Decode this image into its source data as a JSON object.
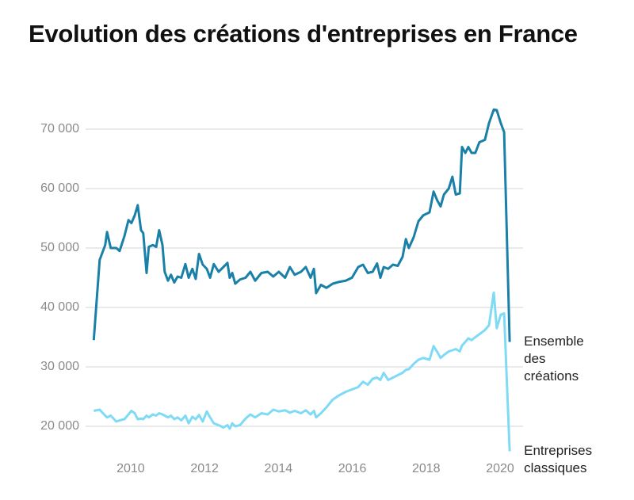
{
  "chart_data": {
    "type": "line",
    "title": "Evolution des créations d'entreprises en France",
    "x": [
      2009.0,
      2009.16,
      2009.31,
      2009.36,
      2009.46,
      2009.61,
      2009.7,
      2009.83,
      2009.94,
      2010.02,
      2010.11,
      2010.19,
      2010.28,
      2010.34,
      2010.43,
      2010.49,
      2010.6,
      2010.69,
      2010.77,
      2010.86,
      2010.92,
      2011.01,
      2011.09,
      2011.18,
      2011.27,
      2011.37,
      2011.48,
      2011.57,
      2011.67,
      2011.76,
      2011.85,
      2011.95,
      2012.06,
      2012.15,
      2012.25,
      2012.38,
      2012.51,
      2012.62,
      2012.68,
      2012.75,
      2012.83,
      2012.96,
      2013.11,
      2013.24,
      2013.37,
      2013.54,
      2013.71,
      2013.86,
      2014.01,
      2014.18,
      2014.31,
      2014.44,
      2014.61,
      2014.74,
      2014.87,
      2014.96,
      2015.02,
      2015.15,
      2015.3,
      2015.47,
      2015.64,
      2015.82,
      2015.99,
      2016.16,
      2016.29,
      2016.42,
      2016.55,
      2016.67,
      2016.76,
      2016.85,
      2016.97,
      2017.1,
      2017.23,
      2017.36,
      2017.45,
      2017.53,
      2017.66,
      2017.79,
      2017.92,
      2018.09,
      2018.2,
      2018.3,
      2018.39,
      2018.48,
      2018.61,
      2018.71,
      2018.8,
      2018.91,
      2018.97,
      2019.06,
      2019.14,
      2019.23,
      2019.33,
      2019.44,
      2019.59,
      2019.7,
      2019.83,
      2019.91,
      2020.02,
      2020.11,
      2020.26
    ],
    "series": [
      {
        "name": "Ensemble des créations",
        "color": "#1a80a8",
        "values": [
          34500,
          48000,
          50500,
          52700,
          50000,
          50000,
          49500,
          52000,
          54700,
          54200,
          55500,
          57200,
          53000,
          52500,
          45800,
          50200,
          50500,
          50200,
          53000,
          50500,
          46000,
          44500,
          45500,
          44200,
          45200,
          45000,
          47300,
          45000,
          46500,
          44800,
          49000,
          47200,
          46500,
          45000,
          47300,
          46000,
          46800,
          47500,
          45000,
          45800,
          44000,
          44700,
          45000,
          46000,
          44500,
          45800,
          46000,
          45200,
          46000,
          45000,
          46800,
          45500,
          46000,
          46800,
          45000,
          46500,
          42400,
          43800,
          43300,
          44000,
          44300,
          44500,
          45000,
          46800,
          47200,
          45800,
          46000,
          47400,
          45000,
          46800,
          46500,
          47200,
          47000,
          48500,
          51500,
          50000,
          51800,
          54500,
          55500,
          56000,
          59500,
          58000,
          57000,
          59000,
          60000,
          62000,
          59000,
          59200,
          67000,
          66000,
          67000,
          66000,
          66000,
          67800,
          68200,
          71000,
          73300,
          73200,
          71000,
          69500,
          34200
        ]
      },
      {
        "name": "Entreprises classiques",
        "color": "#7fdbf5",
        "values": [
          22600,
          22800,
          21800,
          21500,
          21800,
          20800,
          21000,
          21200,
          22000,
          22600,
          22200,
          21200,
          21300,
          21200,
          21800,
          21500,
          22000,
          21800,
          22200,
          22000,
          21800,
          21500,
          21800,
          21200,
          21500,
          21000,
          21800,
          20500,
          21600,
          21200,
          21900,
          20800,
          22500,
          21500,
          20500,
          20200,
          19800,
          20200,
          19600,
          20500,
          20000,
          20200,
          21300,
          22000,
          21500,
          22200,
          22000,
          22800,
          22500,
          22700,
          22300,
          22600,
          22200,
          22700,
          22000,
          22600,
          21500,
          22200,
          23200,
          24500,
          25200,
          25800,
          26200,
          26600,
          27500,
          27000,
          28000,
          28200,
          27800,
          29000,
          27800,
          28200,
          28600,
          29000,
          29500,
          29600,
          30500,
          31200,
          31500,
          31200,
          33500,
          32500,
          31500,
          32000,
          32600,
          32800,
          33000,
          32600,
          33600,
          34200,
          34800,
          34500,
          35000,
          35500,
          36200,
          37000,
          42500,
          36500,
          38800,
          39000,
          15800
        ]
      }
    ],
    "xlim": [
      2008.5,
      2020.5
    ],
    "xticks": [
      2010,
      2012,
      2014,
      2016,
      2018,
      2020
    ],
    "ylim": [
      15000,
      75000
    ],
    "yticks": [
      {
        "value": 20000,
        "label": "20 000"
      },
      {
        "value": 30000,
        "label": "30 000"
      },
      {
        "value": 40000,
        "label": "40 000"
      },
      {
        "value": 50000,
        "label": "50 000"
      },
      {
        "value": 60000,
        "label": "60 000"
      },
      {
        "value": 70000,
        "label": "70 000"
      }
    ],
    "grid": true
  }
}
